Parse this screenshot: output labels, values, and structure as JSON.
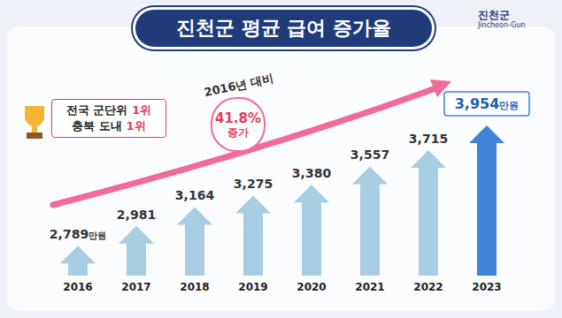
{
  "chart_data": {
    "type": "bar",
    "title": "진천군 평균 급여 증가율",
    "logo": {
      "name": "진천군",
      "name_en": "Jincheon-Gun"
    },
    "categories": [
      "2016",
      "2017",
      "2018",
      "2019",
      "2020",
      "2021",
      "2022",
      "2023"
    ],
    "values": [
      2789,
      2981,
      3164,
      3275,
      3380,
      3557,
      3715,
      3954
    ],
    "value_labels": [
      "2,789만원",
      "2,981",
      "3,164",
      "3,275",
      "3,380",
      "3,557",
      "3,715",
      "3,954만원"
    ],
    "colors": [
      "#a9cde3",
      "#a9cde3",
      "#a9cde3",
      "#a9cde3",
      "#a9cde3",
      "#a9cde3",
      "#a9cde3",
      "#3f84d6"
    ],
    "ylim": [
      2500,
      4100
    ],
    "tick_labels": "x",
    "grid": false,
    "data_labels": true,
    "annotations": {
      "badge": [
        "전국 군단위 1위",
        "충북 도내 1위"
      ],
      "growth": {
        "caption": "2016년 대비",
        "value": "41.8%",
        "note": "증가"
      }
    }
  }
}
